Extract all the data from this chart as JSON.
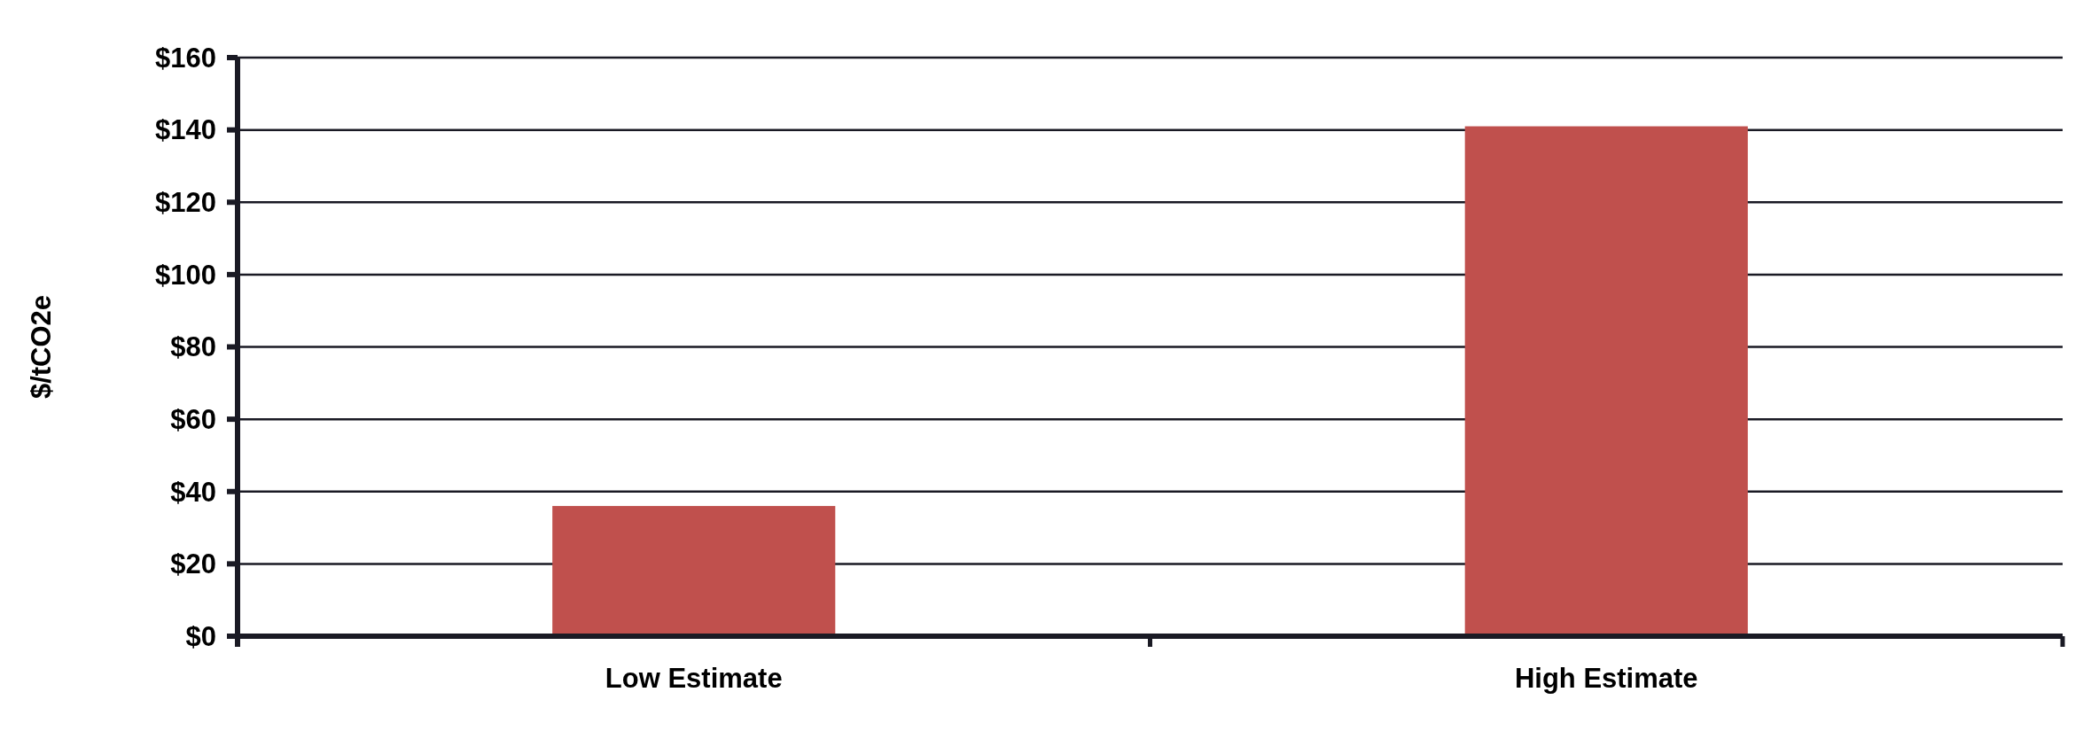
{
  "chart_data": {
    "type": "bar",
    "ylabel": "$/tCO2e",
    "categories": [
      "Low Estimate",
      "High Estimate"
    ],
    "values": [
      36,
      141
    ],
    "color": "#c0504d",
    "ylim": [
      0,
      160
    ],
    "yticks": [
      {
        "value": 0,
        "label": "$0"
      },
      {
        "value": 20,
        "label": "$20"
      },
      {
        "value": 40,
        "label": "$40"
      },
      {
        "value": 60,
        "label": "$60"
      },
      {
        "value": 80,
        "label": "$80"
      },
      {
        "value": 100,
        "label": "$100"
      },
      {
        "value": 120,
        "label": "$120"
      },
      {
        "value": 140,
        "label": "$140"
      },
      {
        "value": 160,
        "label": "$160"
      }
    ],
    "grid": "y"
  }
}
